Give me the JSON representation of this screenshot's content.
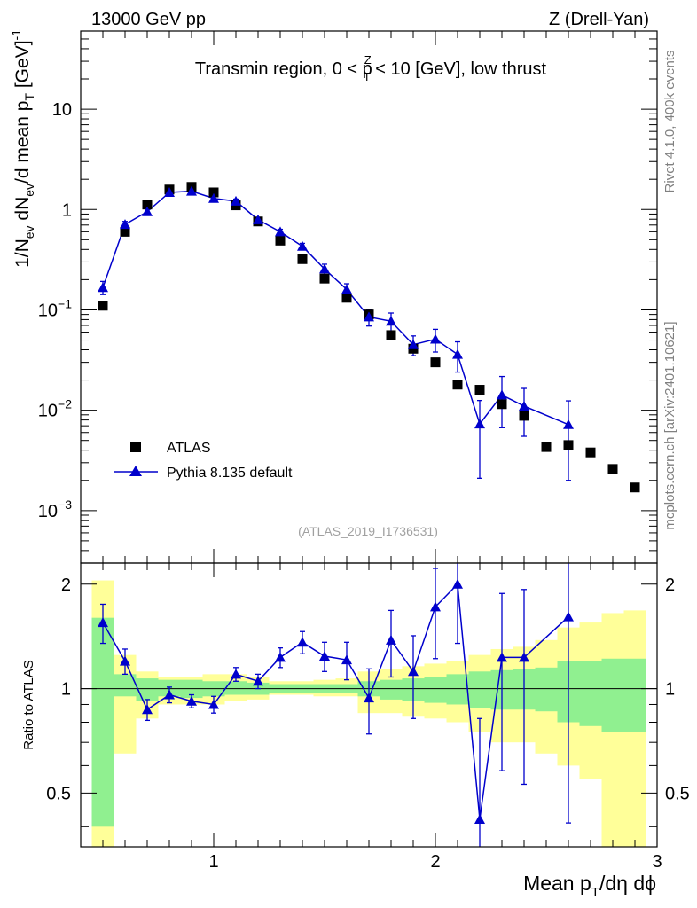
{
  "header": {
    "left": "13000 GeV pp",
    "right": "Z (Drell-Yan)"
  },
  "side_texts": {
    "rivet": "Rivet 4.1.0,  400k events",
    "mcplots": "mcplots.cern.ch [arXiv:2401.10621]"
  },
  "chart_data": {
    "type": "scatter",
    "title": "Transmin region, 0 < pT^Z < 10 [GeV], low thrust",
    "title_parts": {
      "pre": "Transmin region, 0 < p",
      "sup": "Z",
      "sub": "T",
      "post": " < 10 [GeV], low thrust"
    },
    "analysis_id": "(ATLAS_2019_I1736531)",
    "xlabel": "Mean p_T/dη dϕ",
    "xlabel_parts": {
      "a": "Mean p",
      "sub": "T",
      "b": "/dη dϕ"
    },
    "ylabel": "1/N_ev dN_ev/d mean p_T [GeV]^-1",
    "ylabel_parts": {
      "a": "1/N",
      "sub1": "ev",
      "b": " dN",
      "sub2": "ev",
      "c": "/d mean p",
      "sub3": "T",
      "d": " [GeV]",
      "sup": "-1"
    },
    "ratio_ylabel": "Ratio to ATLAS",
    "xlim": [
      0.4,
      3.0
    ],
    "ylim": [
      0.0003,
      60
    ],
    "yscale": "log",
    "ratio_ylim": [
      0.35,
      2.3
    ],
    "x_ticks": [
      "1",
      "2",
      "3"
    ],
    "x_tick_values": [
      1,
      2,
      3
    ],
    "y_ticks": [
      {
        "value": 0.001,
        "base": "10",
        "exp": "−3"
      },
      {
        "value": 0.01,
        "base": "10",
        "exp": "−2"
      },
      {
        "value": 0.1,
        "base": "10",
        "exp": "−1"
      },
      {
        "value": 1,
        "base": "1",
        "exp": ""
      },
      {
        "value": 10,
        "base": "10",
        "exp": ""
      }
    ],
    "ratio_ticks": [
      {
        "value": 0.5,
        "label": "0.5"
      },
      {
        "value": 1,
        "label": "1"
      },
      {
        "value": 2,
        "label": "2"
      }
    ],
    "legend": {
      "position": "bottom-left",
      "atlas": "ATLAS",
      "mc": "Pythia 8.135 default"
    },
    "colors": {
      "data": "#000000",
      "mc": "#0000cc",
      "band1": "#90f090",
      "band2": "#ffff99"
    },
    "x": [
      0.5,
      0.6,
      0.7,
      0.8,
      0.9,
      1.0,
      1.1,
      1.2,
      1.3,
      1.4,
      1.5,
      1.6,
      1.7,
      1.8,
      1.9,
      2.0,
      2.1,
      2.2,
      2.3,
      2.4,
      2.5,
      2.6,
      2.7,
      2.8,
      2.9
    ],
    "atlas": [
      0.11,
      0.6,
      1.12,
      1.58,
      1.68,
      1.48,
      1.1,
      0.76,
      0.49,
      0.32,
      0.205,
      0.132,
      0.09,
      0.056,
      0.041,
      0.03,
      0.018,
      0.016,
      0.0115,
      0.0088,
      0.0043,
      0.0045,
      0.0038,
      0.0026,
      0.0017
    ],
    "mc": {
      "x": [
        0.5,
        0.6,
        0.7,
        0.8,
        0.9,
        1.0,
        1.1,
        1.2,
        1.3,
        1.4,
        1.5,
        1.6,
        1.7,
        1.8,
        1.9,
        2.0,
        2.1,
        2.2,
        2.3,
        2.4,
        2.6
      ],
      "y": [
        0.167,
        0.71,
        0.95,
        1.48,
        1.52,
        1.29,
        1.21,
        0.79,
        0.6,
        0.43,
        0.255,
        0.16,
        0.085,
        0.077,
        0.045,
        0.051,
        0.036,
        0.0073,
        0.0142,
        0.011,
        0.0072
      ],
      "err": [
        0.025,
        0.05,
        0.06,
        0.08,
        0.08,
        0.07,
        0.06,
        0.04,
        0.035,
        0.03,
        0.03,
        0.022,
        0.016,
        0.016,
        0.01,
        0.013,
        0.012,
        0.0052,
        0.0075,
        0.0055,
        0.0052
      ]
    },
    "ratio": {
      "x": [
        0.5,
        0.6,
        0.7,
        0.8,
        0.9,
        1.0,
        1.1,
        1.2,
        1.3,
        1.4,
        1.5,
        1.6,
        1.7,
        1.8,
        1.9,
        2.0,
        2.1,
        2.2,
        2.3,
        2.4,
        2.6
      ],
      "y": [
        1.55,
        1.2,
        0.87,
        0.96,
        0.92,
        0.9,
        1.1,
        1.05,
        1.23,
        1.36,
        1.24,
        1.21,
        0.94,
        1.38,
        1.12,
        1.72,
        2.0,
        0.42,
        1.23,
        1.23,
        1.61
      ],
      "err": [
        0.2,
        0.1,
        0.06,
        0.05,
        0.04,
        0.05,
        0.05,
        0.05,
        0.08,
        0.1,
        0.12,
        0.15,
        0.2,
        0.3,
        0.3,
        0.5,
        0.65,
        0.4,
        0.65,
        0.7,
        1.2
      ]
    },
    "bands": {
      "edges": [
        0.45,
        0.55,
        0.65,
        0.75,
        0.85,
        0.95,
        1.05,
        1.15,
        1.25,
        1.35,
        1.45,
        1.55,
        1.65,
        1.75,
        1.85,
        1.95,
        2.05,
        2.15,
        2.25,
        2.35,
        2.45,
        2.55,
        2.65,
        2.75,
        2.85,
        2.95
      ],
      "inner": [
        [
          0.4,
          1.6
        ],
        [
          0.95,
          1.1
        ],
        [
          0.92,
          1.07
        ],
        [
          0.95,
          1.06
        ],
        [
          0.94,
          1.06
        ],
        [
          0.95,
          1.05
        ],
        [
          0.96,
          1.05
        ],
        [
          0.96,
          1.04
        ],
        [
          0.97,
          1.03
        ],
        [
          0.97,
          1.03
        ],
        [
          0.97,
          1.03
        ],
        [
          0.97,
          1.03
        ],
        [
          0.95,
          1.05
        ],
        [
          0.93,
          1.06
        ],
        [
          0.92,
          1.07
        ],
        [
          0.91,
          1.08
        ],
        [
          0.9,
          1.1
        ],
        [
          0.88,
          1.12
        ],
        [
          0.87,
          1.13
        ],
        [
          0.87,
          1.14
        ],
        [
          0.86,
          1.15
        ],
        [
          0.8,
          1.2
        ],
        [
          0.78,
          1.2
        ],
        [
          0.75,
          1.22
        ],
        [
          0.75,
          1.22
        ]
      ],
      "outer": [
        [
          0.35,
          2.05
        ],
        [
          0.65,
          1.25
        ],
        [
          0.82,
          1.12
        ],
        [
          0.9,
          1.08
        ],
        [
          0.9,
          1.08
        ],
        [
          0.9,
          1.1
        ],
        [
          0.92,
          1.1
        ],
        [
          0.93,
          1.08
        ],
        [
          0.96,
          1.05
        ],
        [
          0.96,
          1.05
        ],
        [
          0.95,
          1.06
        ],
        [
          0.95,
          1.07
        ],
        [
          0.85,
          1.12
        ],
        [
          0.85,
          1.14
        ],
        [
          0.83,
          1.16
        ],
        [
          0.82,
          1.18
        ],
        [
          0.8,
          1.2
        ],
        [
          0.75,
          1.25
        ],
        [
          0.7,
          1.3
        ],
        [
          0.7,
          1.32
        ],
        [
          0.65,
          1.38
        ],
        [
          0.6,
          1.5
        ],
        [
          0.55,
          1.55
        ],
        [
          0.35,
          1.65
        ],
        [
          0.35,
          1.68
        ]
      ]
    }
  }
}
